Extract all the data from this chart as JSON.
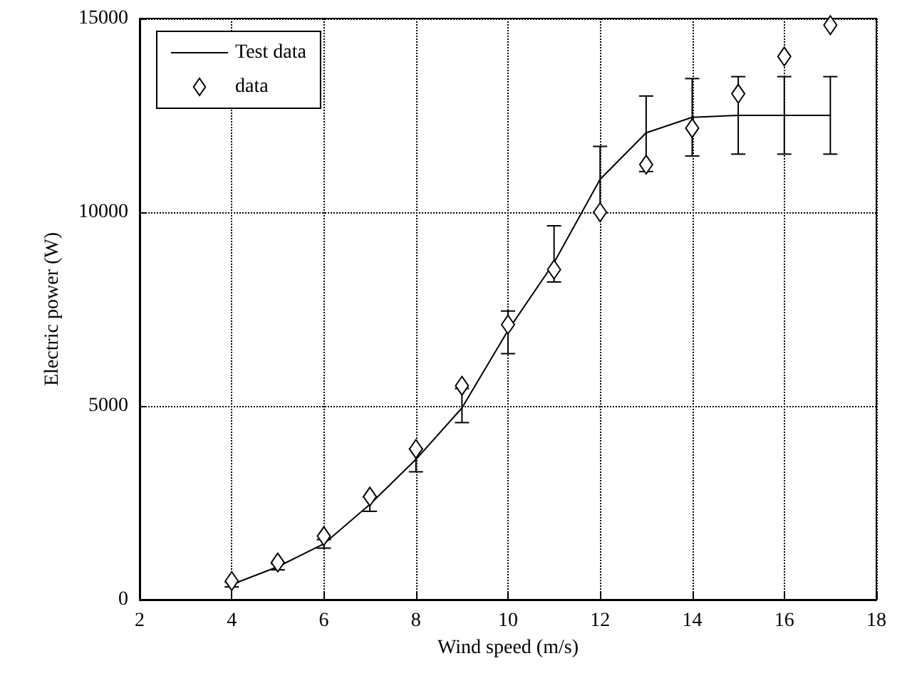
{
  "chart_data": {
    "type": "line",
    "xlabel": "Wind speed (m/s)",
    "ylabel": "Electric power (W)",
    "xlim": [
      2,
      18
    ],
    "xticks": [
      2,
      4,
      6,
      8,
      10,
      12,
      14,
      16,
      18
    ],
    "ylim": [
      0,
      15000
    ],
    "yticks": [
      0,
      5000,
      10000,
      15000
    ],
    "grid": true,
    "legend": "top left",
    "series": [
      {
        "name": "Test data",
        "color": "#000000",
        "marker": "none",
        "line_style": "solid",
        "x": [
          4,
          5,
          6,
          7,
          8,
          9,
          10,
          11,
          12,
          13,
          14,
          15,
          16,
          17
        ],
        "values": [
          390,
          850,
          1440,
          2460,
          3620,
          4950,
          6950,
          8700,
          10850,
          12050,
          12450,
          12500,
          12500,
          12500
        ],
        "errors": [
          60,
          80,
          [
            1330,
            1550
          ],
          [
            2280,
            2650
          ],
          [
            3300,
            3900
          ],
          [
            4570,
            5450
          ],
          [
            6350,
            7450
          ],
          [
            8200,
            9650
          ],
          [
            10000,
            11700
          ],
          [
            11050,
            13000
          ],
          [
            11450,
            13450
          ],
          [
            11500,
            13500
          ],
          [
            11500,
            13500
          ],
          [
            11500,
            13500
          ]
        ]
      },
      {
        "name": "data",
        "type": "scatter",
        "color": "#000000",
        "marker": "diamond",
        "x": [
          4,
          5,
          6,
          7,
          8,
          9,
          10,
          11,
          12,
          13,
          14,
          15,
          16,
          17
        ],
        "values": [
          480,
          960,
          1640,
          2660,
          3890,
          5520,
          7100,
          8520,
          10000,
          11230,
          12170,
          13060,
          14020,
          14830
        ]
      }
    ]
  }
}
